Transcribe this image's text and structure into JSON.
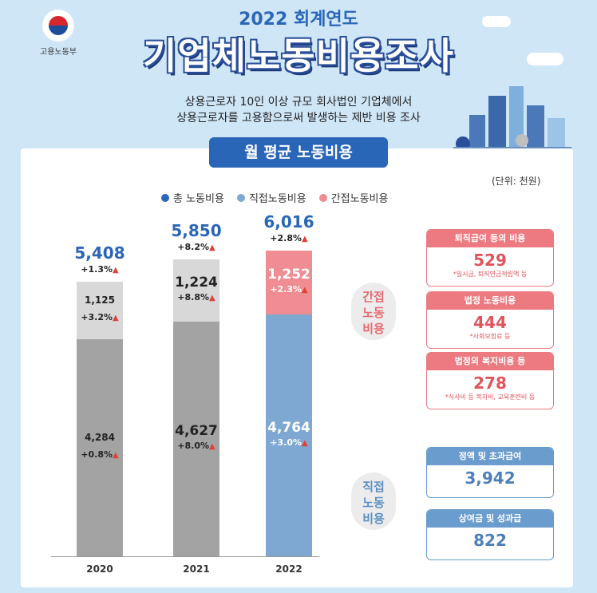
{
  "header": {
    "ministry": "고용노동부",
    "year_title": "2022 회계연도",
    "main_title": "기업체노동비용조사",
    "desc_line1": "상용근로자 10인 이상 규모 회사법인 기업체에서",
    "desc_line2": "상용근로자를 고용함으로써 발생하는 제반 비용 조사"
  },
  "section_title": "월 평균 노동비용",
  "unit": "(단위: 천원)",
  "legend": [
    "총 노동비용",
    "직접노동비용",
    "간접노동비용"
  ],
  "colors": {
    "total": "#2a66b8",
    "direct": "#7ea8d1",
    "indirect": "#f08d92",
    "gray_dark": "#a3a3a3",
    "gray_light": "#d8d8d8",
    "up_arrow": "#e0403a"
  },
  "callouts": {
    "indirect": "간접\n노동\n비용",
    "direct": "직접\n노동\n비용"
  },
  "chart_data": {
    "type": "bar",
    "stacked": true,
    "categories": [
      "2020",
      "2021",
      "2022"
    ],
    "series": [
      {
        "name": "직접노동비용",
        "values": [
          4284,
          4627,
          4764
        ],
        "changes": [
          "+0.8%",
          "+8.0%",
          "+3.0%"
        ]
      },
      {
        "name": "간접노동비용",
        "values": [
          1125,
          1224,
          1252
        ],
        "changes": [
          "+3.2%",
          "+8.8%",
          "+2.3%"
        ]
      }
    ],
    "totals": {
      "name": "총 노동비용",
      "values": [
        5408,
        5850,
        6016
      ],
      "labels": [
        "5,408",
        "5,850",
        "6,016"
      ],
      "changes": [
        "+1.3%",
        "+8.2%",
        "+2.8%"
      ]
    },
    "segment_labels": {
      "direct": [
        "4,284",
        "4,627",
        "4,764"
      ],
      "indirect": [
        "1,125",
        "1,224",
        "1,252"
      ]
    }
  },
  "indirect_breakdown": [
    {
      "title": "퇴직급여 등의 비용",
      "value": "529",
      "note": "*일시금, 퇴직연금적립액 등"
    },
    {
      "title": "법정 노동비용",
      "value": "444",
      "note": "*사회보험료 등"
    },
    {
      "title": "법정외 복지비용 등",
      "value": "278",
      "note": "*식사비 등 복지비, 교육훈련비 등"
    }
  ],
  "direct_breakdown": [
    {
      "title": "정액 및 초과급여",
      "value": "3,942"
    },
    {
      "title": "상여금 및 성과급",
      "value": "822"
    }
  ]
}
